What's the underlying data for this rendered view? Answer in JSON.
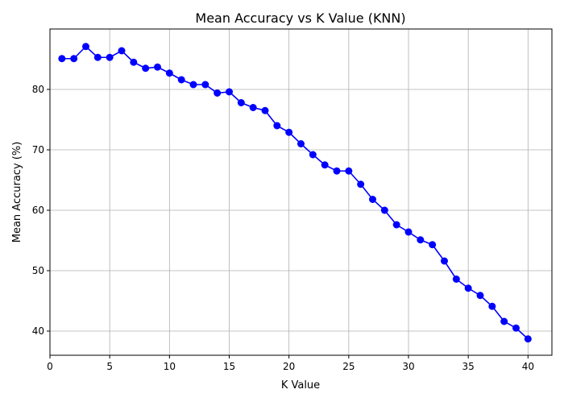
{
  "chart_data": {
    "type": "line",
    "title": "Mean Accuracy vs K Value (KNN)",
    "xlabel": "K Value",
    "ylabel": "Mean Accuracy (%)",
    "xlim": [
      0,
      42
    ],
    "ylim": [
      36,
      90
    ],
    "xticks": [
      0,
      5,
      10,
      15,
      20,
      25,
      30,
      35,
      40
    ],
    "yticks": [
      40,
      50,
      60,
      70,
      80
    ],
    "grid": true,
    "series": [
      {
        "color": "#0000ff",
        "marker": "circle",
        "x": [
          1,
          2,
          3,
          4,
          5,
          6,
          7,
          8,
          9,
          10,
          11,
          12,
          13,
          14,
          15,
          16,
          17,
          18,
          19,
          20,
          21,
          22,
          23,
          24,
          25,
          26,
          27,
          28,
          29,
          30,
          31,
          32,
          33,
          34,
          35,
          36,
          37,
          38,
          39,
          40
        ],
        "y": [
          85.1,
          85.1,
          87.1,
          85.3,
          85.3,
          86.4,
          84.5,
          83.5,
          83.7,
          82.7,
          81.6,
          80.8,
          80.8,
          79.4,
          79.6,
          77.8,
          77.0,
          76.5,
          74.0,
          72.9,
          71.0,
          69.2,
          67.5,
          66.5,
          66.5,
          64.3,
          61.8,
          60.0,
          57.6,
          56.4,
          55.1,
          54.3,
          51.6,
          48.6,
          47.1,
          45.9,
          44.1,
          41.6,
          40.5,
          38.7
        ]
      }
    ]
  }
}
